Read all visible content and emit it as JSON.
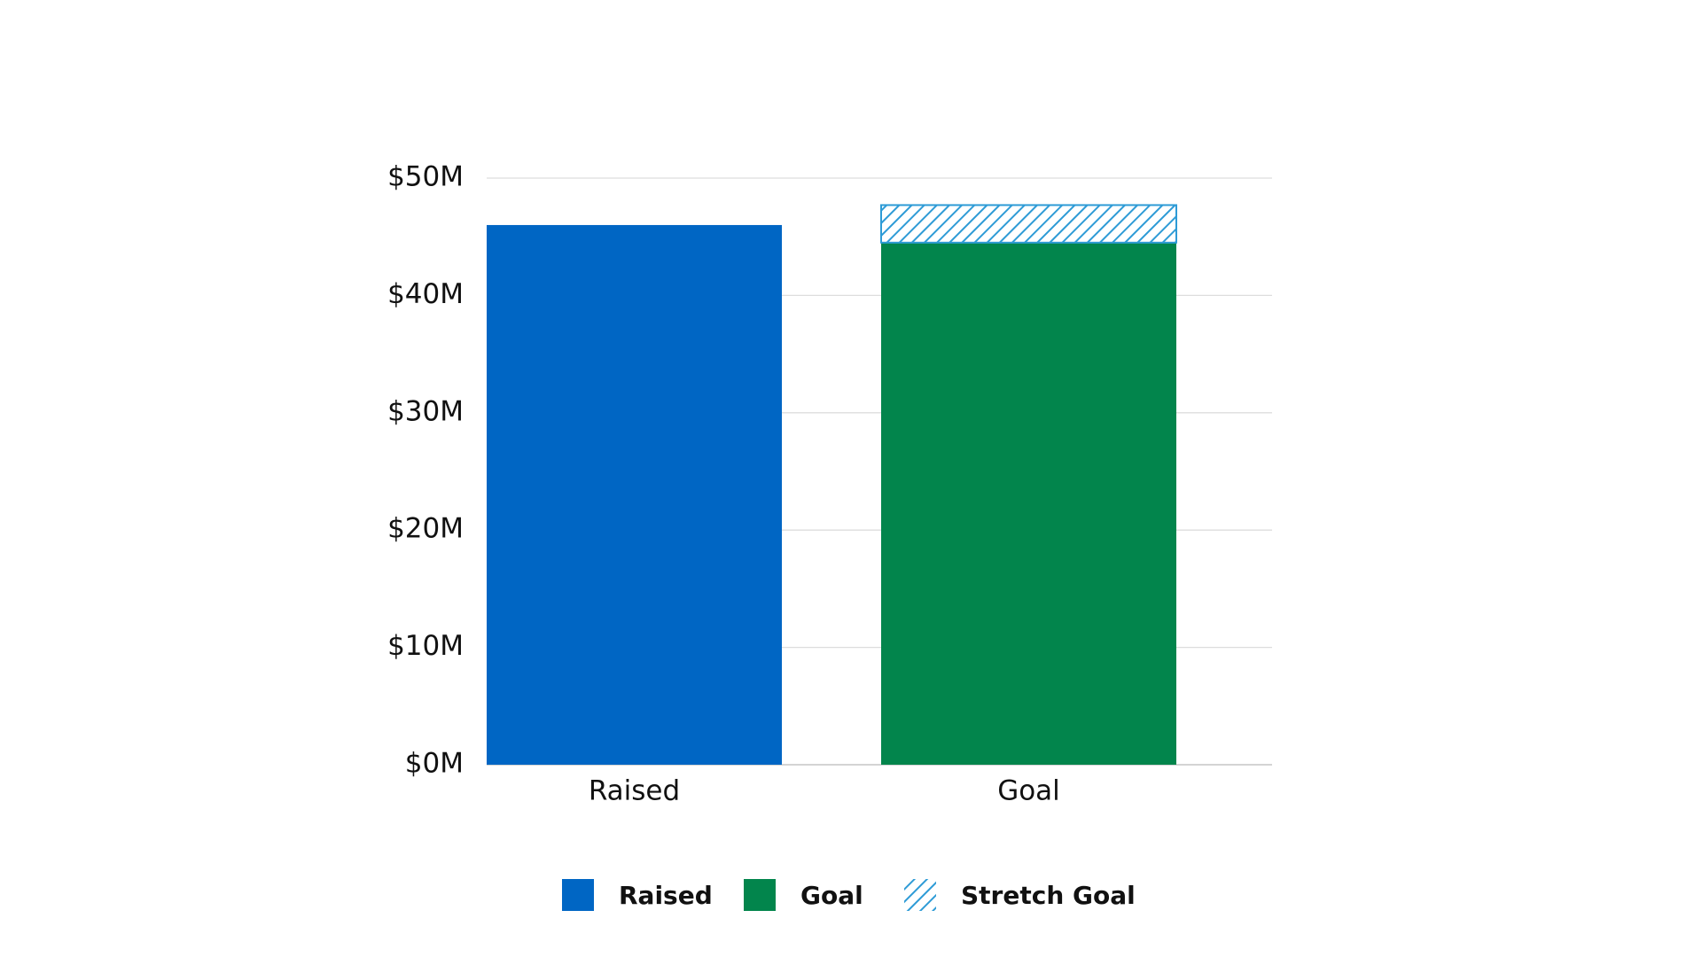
{
  "chart_data": {
    "type": "bar",
    "stacked": true,
    "categories": [
      "Raised",
      "Goal"
    ],
    "series": [
      {
        "name": "Raised",
        "color": "#0066c4",
        "values": [
          46,
          null
        ]
      },
      {
        "name": "Goal",
        "color": "#02854c",
        "values": [
          null,
          44.5
        ]
      },
      {
        "name": "Stretch Goal",
        "color": "#2e9bd6",
        "hatch": true,
        "values": [
          null,
          3.2
        ]
      }
    ],
    "ylim": [
      0,
      50
    ],
    "yticks": [
      {
        "value": 0,
        "label": "$0M"
      },
      {
        "value": 10,
        "label": "$10M"
      },
      {
        "value": 20,
        "label": "$20M"
      },
      {
        "value": 30,
        "label": "$30M"
      },
      {
        "value": 40,
        "label": "$40M"
      },
      {
        "value": 50,
        "label": "$50M"
      }
    ],
    "grid": true,
    "legend": "bottom"
  }
}
